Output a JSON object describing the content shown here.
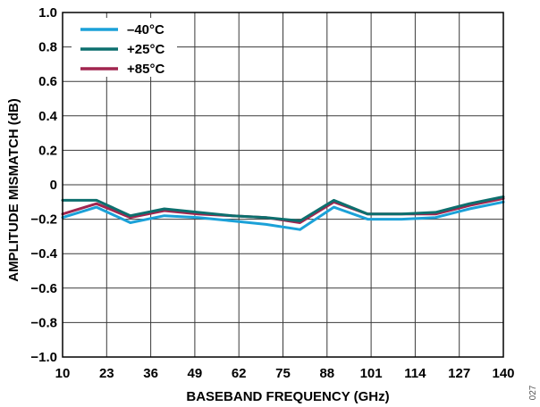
{
  "chart_data": {
    "type": "line",
    "xlabel": "BASEBAND FREQUENCY (GHz)",
    "ylabel": "AMPLITUDE MISMATCH (dB)",
    "xlim": [
      10,
      140
    ],
    "ylim": [
      -1.0,
      1.0
    ],
    "x_ticks": [
      "10",
      "23",
      "36",
      "49",
      "62",
      "75",
      "88",
      "101",
      "114",
      "127",
      "140"
    ],
    "y_ticks": [
      "1.0",
      "0.8",
      "0.6",
      "0.4",
      "0.2",
      "0",
      "−0.2",
      "−0.4",
      "−0.6",
      "−0.8",
      "−1.0"
    ],
    "grid": true,
    "legend_position": "top-left",
    "x": [
      10,
      20,
      30,
      40,
      50,
      60,
      70,
      80,
      90,
      100,
      110,
      120,
      130,
      140
    ],
    "series": [
      {
        "name": "–40°C",
        "color": "#1ba1d8",
        "values": [
          -0.19,
          -0.13,
          -0.22,
          -0.18,
          -0.19,
          -0.21,
          -0.23,
          -0.26,
          -0.13,
          -0.2,
          -0.2,
          -0.19,
          -0.14,
          -0.1
        ]
      },
      {
        "name": "+25°C",
        "color": "#0d6f6e",
        "values": [
          -0.09,
          -0.09,
          -0.18,
          -0.14,
          -0.16,
          -0.18,
          -0.19,
          -0.21,
          -0.09,
          -0.17,
          -0.17,
          -0.16,
          -0.11,
          -0.07
        ]
      },
      {
        "name": "+85°C",
        "color": "#a1254f",
        "values": [
          -0.17,
          -0.11,
          -0.19,
          -0.15,
          -0.17,
          -0.18,
          -0.19,
          -0.22,
          -0.1,
          -0.17,
          -0.17,
          -0.17,
          -0.12,
          -0.08
        ]
      }
    ]
  },
  "figure_id": "027"
}
